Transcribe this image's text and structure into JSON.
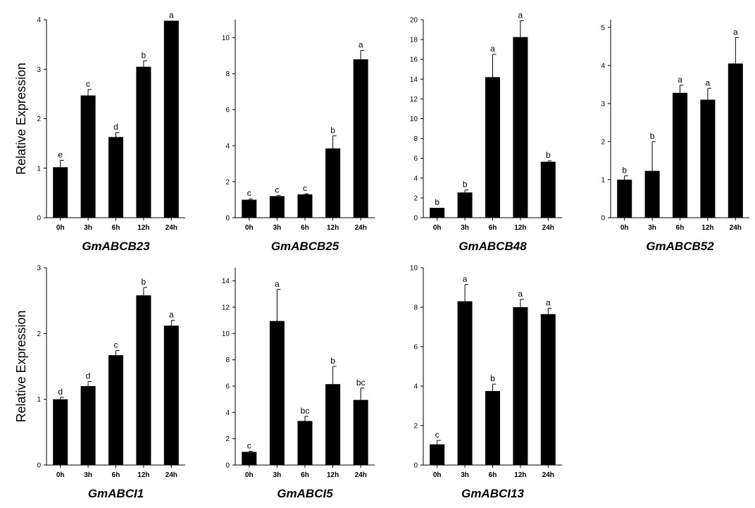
{
  "chart_data": [
    {
      "type": "bar",
      "title": "GmABCB23",
      "ylabel": "Relative Expression",
      "categories": [
        "0h",
        "3h",
        "6h",
        "12h",
        "24h"
      ],
      "values": [
        1.02,
        2.47,
        1.63,
        3.05,
        3.98
      ],
      "errors": [
        0.14,
        0.12,
        0.09,
        0.12,
        0.0
      ],
      "significance": [
        "e",
        "c",
        "d",
        "b",
        "a"
      ],
      "ylim": [
        0,
        4
      ],
      "yticks": [
        0,
        1,
        2,
        3,
        4
      ],
      "ytick_labels": [
        "0",
        "1",
        "2",
        "3",
        "4"
      ]
    },
    {
      "type": "bar",
      "title": "GmABCB25",
      "ylabel": "",
      "categories": [
        "0h",
        "3h",
        "6h",
        "12h",
        "24h"
      ],
      "values": [
        1.0,
        1.2,
        1.3,
        3.85,
        8.8
      ],
      "errors": [
        0.05,
        0.04,
        0.03,
        0.7,
        0.5
      ],
      "significance": [
        "c",
        "c",
        "c",
        "b",
        "a"
      ],
      "ylim": [
        0,
        11
      ],
      "yticks": [
        0,
        2,
        4,
        6,
        8,
        10
      ],
      "ytick_labels": [
        "0",
        "2",
        "4",
        "6",
        "8",
        "10"
      ]
    },
    {
      "type": "bar",
      "title": "GmABCB48",
      "ylabel": "",
      "categories": [
        "0h",
        "3h",
        "6h",
        "12h",
        "24h"
      ],
      "values": [
        1.0,
        2.55,
        14.2,
        18.25,
        5.65
      ],
      "errors": [
        0.0,
        0.25,
        2.3,
        1.65,
        0.1
      ],
      "significance": [
        "b",
        "b",
        "a",
        "a",
        "b"
      ],
      "ylim": [
        0,
        20
      ],
      "yticks": [
        0,
        2,
        4,
        6,
        8,
        10,
        12,
        14,
        16,
        18,
        20
      ],
      "ytick_labels": [
        "0",
        "2",
        "4",
        "6",
        "8",
        "10",
        "12",
        "14",
        "16",
        "18",
        "20"
      ]
    },
    {
      "type": "bar",
      "title": "GmABCB52",
      "ylabel": "",
      "categories": [
        "0h",
        "3h",
        "6h",
        "12h",
        "24h"
      ],
      "values": [
        1.0,
        1.23,
        3.28,
        3.1,
        4.05
      ],
      "errors": [
        0.1,
        0.77,
        0.2,
        0.3,
        0.68
      ],
      "significance": [
        "b",
        "b",
        "a",
        "a",
        "a"
      ],
      "ylim": [
        0,
        5.2
      ],
      "yticks": [
        0,
        1,
        2,
        3,
        4,
        5
      ],
      "ytick_labels": [
        "0",
        "1",
        "2",
        "3",
        "4",
        "5"
      ]
    },
    {
      "type": "bar",
      "title": "GmABCI1",
      "ylabel": "Relative Expression",
      "categories": [
        "0h",
        "3h",
        "6h",
        "12h",
        "24h"
      ],
      "values": [
        1.0,
        1.2,
        1.67,
        2.58,
        2.12
      ],
      "errors": [
        0.03,
        0.07,
        0.07,
        0.12,
        0.08
      ],
      "significance": [
        "d",
        "d",
        "c",
        "b",
        "a"
      ],
      "ylim": [
        0,
        3
      ],
      "yticks": [
        0,
        1,
        2,
        3
      ],
      "ytick_labels": [
        "0",
        "1",
        "2",
        "3"
      ]
    },
    {
      "type": "bar",
      "title": "GmABCI5",
      "ylabel": "",
      "categories": [
        "0h",
        "3h",
        "6h",
        "12h",
        "24h"
      ],
      "values": [
        1.0,
        10.95,
        3.35,
        6.15,
        4.95
      ],
      "errors": [
        0.05,
        2.4,
        0.35,
        1.35,
        0.9
      ],
      "significance": [
        "c",
        "a",
        "bc",
        "b",
        "bc"
      ],
      "ylim": [
        0,
        15
      ],
      "yticks": [
        0,
        2,
        4,
        6,
        8,
        10,
        12,
        14
      ],
      "ytick_labels": [
        "0",
        "2",
        "4",
        "6",
        "8",
        "10",
        "12",
        "14"
      ]
    },
    {
      "type": "bar",
      "title": "GmABCI13",
      "ylabel": "",
      "categories": [
        "0h",
        "3h",
        "6h",
        "12h",
        "24h"
      ],
      "values": [
        1.05,
        8.3,
        3.75,
        8.0,
        7.65
      ],
      "errors": [
        0.2,
        0.85,
        0.35,
        0.4,
        0.3
      ],
      "significance": [
        "c",
        "a",
        "b",
        "a",
        "a"
      ],
      "ylim": [
        0,
        10
      ],
      "yticks": [
        0,
        2,
        4,
        6,
        8,
        10
      ],
      "ytick_labels": [
        "0",
        "2",
        "4",
        "6",
        "8",
        "10"
      ]
    }
  ]
}
